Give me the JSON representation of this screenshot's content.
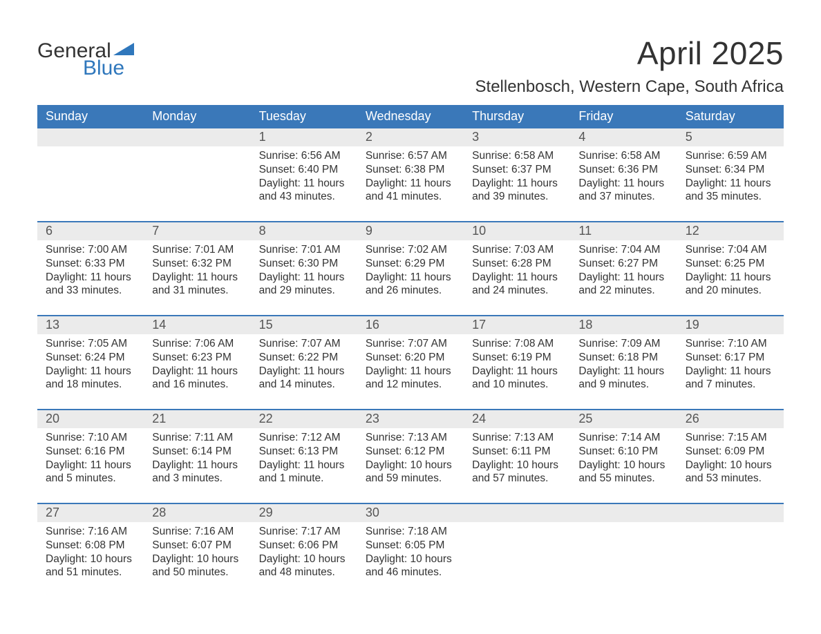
{
  "logo": {
    "word1": "General",
    "word2": "Blue",
    "shape_color": "#2f77bc",
    "text1_color": "#333333",
    "text2_color": "#2f77bc"
  },
  "title": "April 2025",
  "location": "Stellenbosch, Western Cape, South Africa",
  "header_bg": "#3a78b9",
  "header_fg": "#ffffff",
  "daynum_bg": "#ebebeb",
  "rule_color": "#3a78b9",
  "text_color": "#333333",
  "days_of_week": [
    "Sunday",
    "Monday",
    "Tuesday",
    "Wednesday",
    "Thursday",
    "Friday",
    "Saturday"
  ],
  "labels": {
    "sunrise": "Sunrise:",
    "sunset": "Sunset:",
    "daylight": "Daylight:"
  },
  "weeks": [
    [
      {
        "n": "",
        "sunrise": "",
        "sunset": "",
        "daylight": ""
      },
      {
        "n": "",
        "sunrise": "",
        "sunset": "",
        "daylight": ""
      },
      {
        "n": "1",
        "sunrise": "6:56 AM",
        "sunset": "6:40 PM",
        "daylight": "11 hours and 43 minutes."
      },
      {
        "n": "2",
        "sunrise": "6:57 AM",
        "sunset": "6:38 PM",
        "daylight": "11 hours and 41 minutes."
      },
      {
        "n": "3",
        "sunrise": "6:58 AM",
        "sunset": "6:37 PM",
        "daylight": "11 hours and 39 minutes."
      },
      {
        "n": "4",
        "sunrise": "6:58 AM",
        "sunset": "6:36 PM",
        "daylight": "11 hours and 37 minutes."
      },
      {
        "n": "5",
        "sunrise": "6:59 AM",
        "sunset": "6:34 PM",
        "daylight": "11 hours and 35 minutes."
      }
    ],
    [
      {
        "n": "6",
        "sunrise": "7:00 AM",
        "sunset": "6:33 PM",
        "daylight": "11 hours and 33 minutes."
      },
      {
        "n": "7",
        "sunrise": "7:01 AM",
        "sunset": "6:32 PM",
        "daylight": "11 hours and 31 minutes."
      },
      {
        "n": "8",
        "sunrise": "7:01 AM",
        "sunset": "6:30 PM",
        "daylight": "11 hours and 29 minutes."
      },
      {
        "n": "9",
        "sunrise": "7:02 AM",
        "sunset": "6:29 PM",
        "daylight": "11 hours and 26 minutes."
      },
      {
        "n": "10",
        "sunrise": "7:03 AM",
        "sunset": "6:28 PM",
        "daylight": "11 hours and 24 minutes."
      },
      {
        "n": "11",
        "sunrise": "7:04 AM",
        "sunset": "6:27 PM",
        "daylight": "11 hours and 22 minutes."
      },
      {
        "n": "12",
        "sunrise": "7:04 AM",
        "sunset": "6:25 PM",
        "daylight": "11 hours and 20 minutes."
      }
    ],
    [
      {
        "n": "13",
        "sunrise": "7:05 AM",
        "sunset": "6:24 PM",
        "daylight": "11 hours and 18 minutes."
      },
      {
        "n": "14",
        "sunrise": "7:06 AM",
        "sunset": "6:23 PM",
        "daylight": "11 hours and 16 minutes."
      },
      {
        "n": "15",
        "sunrise": "7:07 AM",
        "sunset": "6:22 PM",
        "daylight": "11 hours and 14 minutes."
      },
      {
        "n": "16",
        "sunrise": "7:07 AM",
        "sunset": "6:20 PM",
        "daylight": "11 hours and 12 minutes."
      },
      {
        "n": "17",
        "sunrise": "7:08 AM",
        "sunset": "6:19 PM",
        "daylight": "11 hours and 10 minutes."
      },
      {
        "n": "18",
        "sunrise": "7:09 AM",
        "sunset": "6:18 PM",
        "daylight": "11 hours and 9 minutes."
      },
      {
        "n": "19",
        "sunrise": "7:10 AM",
        "sunset": "6:17 PM",
        "daylight": "11 hours and 7 minutes."
      }
    ],
    [
      {
        "n": "20",
        "sunrise": "7:10 AM",
        "sunset": "6:16 PM",
        "daylight": "11 hours and 5 minutes."
      },
      {
        "n": "21",
        "sunrise": "7:11 AM",
        "sunset": "6:14 PM",
        "daylight": "11 hours and 3 minutes."
      },
      {
        "n": "22",
        "sunrise": "7:12 AM",
        "sunset": "6:13 PM",
        "daylight": "11 hours and 1 minute."
      },
      {
        "n": "23",
        "sunrise": "7:13 AM",
        "sunset": "6:12 PM",
        "daylight": "10 hours and 59 minutes."
      },
      {
        "n": "24",
        "sunrise": "7:13 AM",
        "sunset": "6:11 PM",
        "daylight": "10 hours and 57 minutes."
      },
      {
        "n": "25",
        "sunrise": "7:14 AM",
        "sunset": "6:10 PM",
        "daylight": "10 hours and 55 minutes."
      },
      {
        "n": "26",
        "sunrise": "7:15 AM",
        "sunset": "6:09 PM",
        "daylight": "10 hours and 53 minutes."
      }
    ],
    [
      {
        "n": "27",
        "sunrise": "7:16 AM",
        "sunset": "6:08 PM",
        "daylight": "10 hours and 51 minutes."
      },
      {
        "n": "28",
        "sunrise": "7:16 AM",
        "sunset": "6:07 PM",
        "daylight": "10 hours and 50 minutes."
      },
      {
        "n": "29",
        "sunrise": "7:17 AM",
        "sunset": "6:06 PM",
        "daylight": "10 hours and 48 minutes."
      },
      {
        "n": "30",
        "sunrise": "7:18 AM",
        "sunset": "6:05 PM",
        "daylight": "10 hours and 46 minutes."
      },
      {
        "n": "",
        "sunrise": "",
        "sunset": "",
        "daylight": ""
      },
      {
        "n": "",
        "sunrise": "",
        "sunset": "",
        "daylight": ""
      },
      {
        "n": "",
        "sunrise": "",
        "sunset": "",
        "daylight": ""
      }
    ]
  ]
}
